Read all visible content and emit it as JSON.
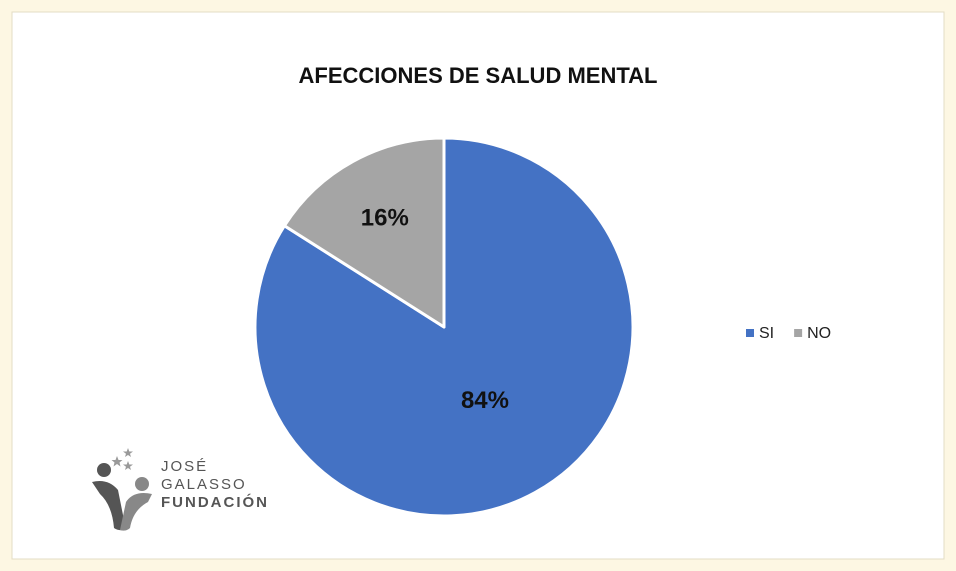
{
  "chart_data": {
    "type": "pie",
    "title": "AFECCIONES DE SALUD MENTAL",
    "categories": [
      "SI",
      "NO"
    ],
    "values": [
      84,
      16
    ],
    "value_labels": [
      "84%",
      "16%"
    ],
    "colors": [
      "#4472c4",
      "#a5a5a5"
    ],
    "legend": "right"
  },
  "logo": {
    "lines": [
      "JOSÉ",
      "GALASSO",
      "FUNDACIÓN"
    ]
  }
}
